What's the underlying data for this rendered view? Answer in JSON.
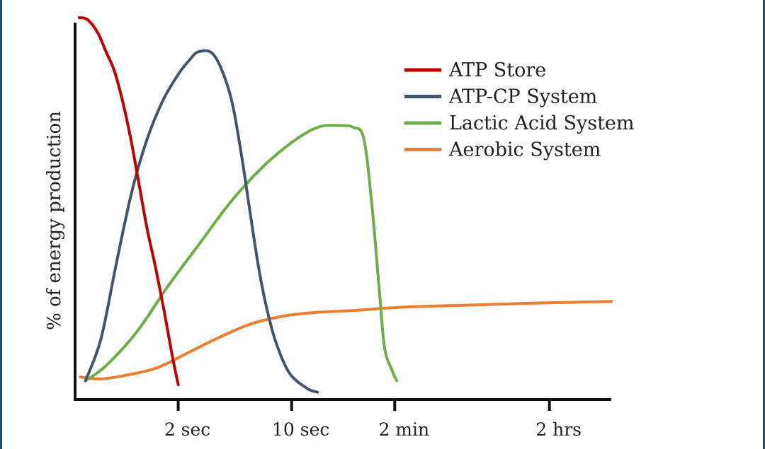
{
  "chart_data": {
    "type": "line",
    "title": "",
    "xlabel": "",
    "ylabel": "% of energy production",
    "xlim": [
      0,
      5.2
    ],
    "ylim": [
      0,
      100
    ],
    "x_ticks": [
      {
        "label": "2 sec",
        "x": 1
      },
      {
        "label": "10 sec",
        "x": 2.1
      },
      {
        "label": "2 min",
        "x": 3.1
      },
      {
        "label": "2 hrs",
        "x": 4.6
      }
    ],
    "grid": false,
    "legend_position": "top-right",
    "series": [
      {
        "name": "ATP Store",
        "color": "#c00000",
        "points": [
          [
            0.04,
            100
          ],
          [
            0.12,
            99.5
          ],
          [
            0.22,
            96
          ],
          [
            0.3,
            91
          ],
          [
            0.38,
            86
          ],
          [
            0.46,
            78
          ],
          [
            0.54,
            68
          ],
          [
            0.62,
            56
          ],
          [
            0.7,
            44
          ],
          [
            0.78,
            34
          ],
          [
            0.86,
            23
          ],
          [
            0.94,
            11
          ],
          [
            1.0,
            3
          ]
        ]
      },
      {
        "name": "ATP-CP System",
        "color": "#44546a",
        "points": [
          [
            0.1,
            4
          ],
          [
            0.25,
            15
          ],
          [
            0.4,
            35
          ],
          [
            0.55,
            54
          ],
          [
            0.7,
            68
          ],
          [
            0.85,
            78
          ],
          [
            1.0,
            85
          ],
          [
            1.1,
            88.5
          ],
          [
            1.2,
            91
          ],
          [
            1.35,
            90
          ],
          [
            1.5,
            80
          ],
          [
            1.6,
            66
          ],
          [
            1.7,
            48
          ],
          [
            1.78,
            34
          ],
          [
            1.86,
            23
          ],
          [
            1.95,
            14
          ],
          [
            2.08,
            6
          ],
          [
            2.25,
            2
          ],
          [
            2.35,
            1
          ]
        ]
      },
      {
        "name": "Lactic Acid System",
        "color": "#70ad47",
        "points": [
          [
            0.1,
            4
          ],
          [
            0.3,
            8
          ],
          [
            0.6,
            17
          ],
          [
            0.9,
            29
          ],
          [
            1.2,
            40
          ],
          [
            1.5,
            51
          ],
          [
            1.8,
            60
          ],
          [
            2.1,
            67
          ],
          [
            2.35,
            71
          ],
          [
            2.55,
            71.5
          ],
          [
            2.7,
            71
          ],
          [
            2.8,
            68
          ],
          [
            2.88,
            50
          ],
          [
            2.95,
            28
          ],
          [
            3.0,
            13
          ],
          [
            3.07,
            7
          ],
          [
            3.12,
            4
          ]
        ]
      },
      {
        "name": "Aerobic System",
        "color": "#ed7d31",
        "points": [
          [
            0.05,
            5
          ],
          [
            0.25,
            4.5
          ],
          [
            0.5,
            5.5
          ],
          [
            0.8,
            7.5
          ],
          [
            1.1,
            11.5
          ],
          [
            1.4,
            15.5
          ],
          [
            1.7,
            19
          ],
          [
            2.0,
            21
          ],
          [
            2.3,
            22
          ],
          [
            2.7,
            22.6
          ],
          [
            3.2,
            23.5
          ],
          [
            3.8,
            24
          ],
          [
            4.4,
            24.5
          ],
          [
            5.2,
            25
          ]
        ]
      }
    ]
  }
}
